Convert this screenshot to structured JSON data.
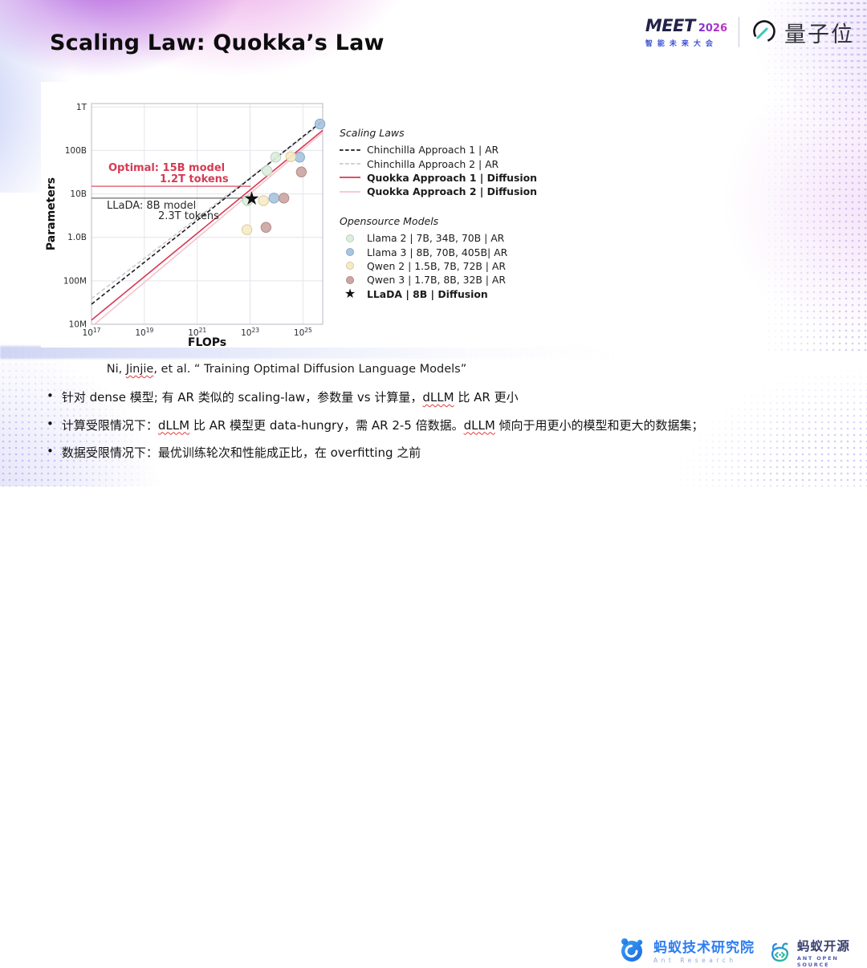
{
  "slide": {
    "title": "Scaling Law: Quokka’s Law"
  },
  "header": {
    "meet": {
      "brand": "MEET",
      "year": "2026",
      "subtitle": "智能未来大会"
    },
    "qbit": {
      "name": "量子位"
    }
  },
  "chart_data": {
    "type": "scatter",
    "title": "",
    "xlabel": "FLOPs",
    "ylabel": "Parameters",
    "xscale": "log",
    "yscale": "log",
    "xlim": [
      1e+17,
      5.6e+25
    ],
    "ylim": [
      10000000.0,
      1200000000000.0
    ],
    "grid": true,
    "x_grid": [
      1e+19,
      1e+21,
      1e+23,
      1e+25
    ],
    "y_grid": [
      100000000.0,
      1000000000.0,
      10000000000.0,
      100000000000.0,
      1000000000000.0
    ],
    "x_ticks": [
      {
        "v": 1e+17,
        "base": "10",
        "exp": "17"
      },
      {
        "v": 1e+19,
        "base": "10",
        "exp": "19"
      },
      {
        "v": 1e+21,
        "base": "10",
        "exp": "21"
      },
      {
        "v": 1e+23,
        "base": "10",
        "exp": "23"
      },
      {
        "v": 1e+25,
        "base": "10",
        "exp": "25"
      }
    ],
    "y_ticks": [
      {
        "v": 1000000000000.0,
        "label": "1T"
      },
      {
        "v": 100000000000.0,
        "label": "100B"
      },
      {
        "v": 10000000000.0,
        "label": "10B"
      },
      {
        "v": 1000000000.0,
        "label": "1.0B"
      },
      {
        "v": 100000000.0,
        "label": "100M"
      },
      {
        "v": 10000000.0,
        "label": "10M"
      }
    ],
    "line_series": [
      {
        "name": "Chinchilla Approach 1 | AR",
        "style": "dashed",
        "color": "#1a1a1a",
        "bold": false,
        "points": [
          [
            1e+17,
            29000000.0
          ],
          [
            5.6e+25,
            480000000000.0
          ]
        ]
      },
      {
        "name": "Chinchilla Approach 2 | AR",
        "style": "dashed",
        "color": "#c9c9cf",
        "bold": false,
        "points": [
          [
            1e+17,
            39000000.0
          ],
          [
            5.6e+25,
            440000000000.0
          ]
        ]
      },
      {
        "name": "Quokka Approach 1 | Diffusion",
        "style": "solid",
        "color": "#d63a52",
        "bold": true,
        "points": [
          [
            1e+17,
            12500000.0
          ],
          [
            5.6e+25,
            290000000000.0
          ]
        ]
      },
      {
        "name": "Quokka Approach 2 | Diffusion",
        "style": "solid",
        "color": "#f4c3cd",
        "bold": true,
        "points": [
          [
            1.3e+17,
            10000000.0
          ],
          [
            5.6e+25,
            260000000000.0
          ]
        ]
      }
    ],
    "scatter_series": [
      {
        "name": "Llama 2 | 7B, 34B, 70B | AR",
        "color": "#ddeedd",
        "stroke": "#b5d4b9",
        "points": [
          [
            8e+22,
            7000000000.0
          ],
          [
            4.4e+23,
            34000000000.0
          ],
          [
            9.3e+23,
            70000000000.0
          ]
        ]
      },
      {
        "name": "Llama 3 | 8B, 70B, 405B| AR",
        "color": "#a9c4df",
        "stroke": "#89a8c8",
        "points": [
          [
            8e+23,
            8000000000.0
          ],
          [
            7.5e+24,
            70000000000.0
          ],
          [
            4.4e+25,
            405000000000.0
          ]
        ]
      },
      {
        "name": "Qwen 2 | 1.5B, 7B, 72B | AR",
        "color": "#f5ebc8",
        "stroke": "#ddc998",
        "points": [
          [
            7.6e+22,
            1500000000.0
          ],
          [
            3.2e+23,
            7000000000.0
          ],
          [
            3.5e+24,
            72000000000.0
          ]
        ]
      },
      {
        "name": "Qwen 3 | 1.7B, 8B, 32B | AR",
        "color": "#cba6a3",
        "stroke": "#b18a87",
        "points": [
          [
            4e+23,
            1700000000.0
          ],
          [
            1.9e+24,
            8000000000.0
          ],
          [
            8.7e+24,
            32000000000.0
          ]
        ]
      }
    ],
    "star_series": {
      "name": "LLaDA | 8B | Diffusion",
      "glyph": "★",
      "color": "#111111",
      "point": [
        1.15e+23,
        8000000000.0
      ]
    },
    "annotations": {
      "optimal": {
        "line1": "Optimal:  15B model",
        "line2": "1.2T tokens",
        "value": 15000000000.0,
        "x_end": 1.05e+23,
        "color": "#d63a52"
      },
      "llada": {
        "line1": "LLaDA:  8B model",
        "line2": "2.3T tokens",
        "value": 8000000000.0,
        "x_end": 1.15e+23,
        "color": "#2a2a2a",
        "line_color": "#4a4a4a"
      }
    },
    "legend": {
      "scaling_title": "Scaling Laws",
      "models_title": "Opensource Models"
    },
    "legend_position": "right"
  },
  "citation": {
    "pre": "Ni, ",
    "wavy": "Jinjie",
    "post": ", et al. “ Training Optimal Diffusion Language Models”"
  },
  "bullet_char": "•",
  "bullets": [
    {
      "segments": [
        {
          "t": "针对 dense 模型; 有 AR 类似的 scaling-law，参数量 vs 计算量，"
        },
        {
          "t": "dLLM",
          "wavy": true
        },
        {
          "t": " 比 AR 更小"
        }
      ]
    },
    {
      "segments": [
        {
          "t": "计算受限情况下："
        },
        {
          "t": "dLLM",
          "wavy": true
        },
        {
          "t": " 比 AR 模型更 data-hungry，需 AR 2-5 倍数据。"
        },
        {
          "t": "dLLM",
          "wavy": true
        },
        {
          "t": " 倾向于用更小的模型和更大的数据集；"
        }
      ]
    },
    {
      "segments": [
        {
          "t": "数据受限情况下：最优训练轮次和性能成正比，在 overfitting 之前"
        }
      ]
    }
  ],
  "footer": {
    "ant_research": {
      "title": "蚂蚁技术研究院",
      "subtitle": "Ant Research"
    },
    "ant_open_source": {
      "title": "蚂蚁开源",
      "subtitle": "ANT OPEN SOURCE"
    }
  },
  "colors": {
    "accent_red": "#d63a52",
    "accent_pink": "#f4c3cd",
    "meet_blue": "#3c52d4",
    "ant_blue": "#2e7ef2",
    "qbit_teal": "#3cc8b4"
  }
}
